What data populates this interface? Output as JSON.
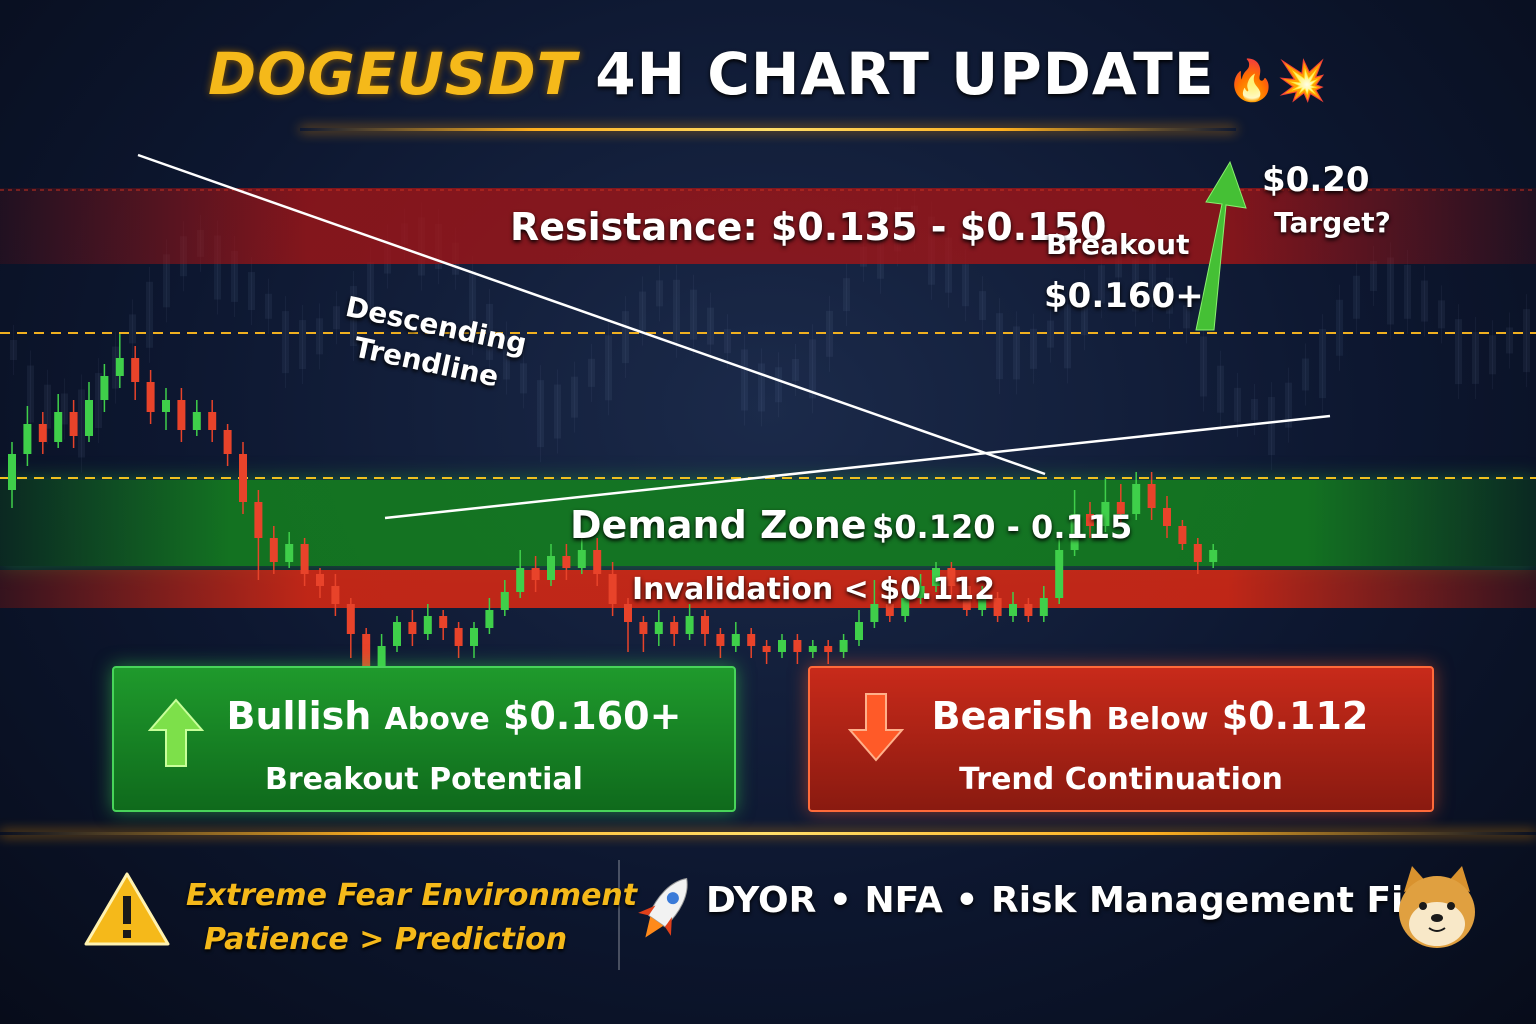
{
  "title": {
    "symbol": "DOGEUSDT",
    "rest": "4H CHART UPDATE",
    "emoji": "🔥💥"
  },
  "annotations": {
    "resistance": "Resistance: $0.135 - $0.150",
    "descending_trendline": "Descending",
    "descending_trendline_2": "Trendline",
    "breakout": "Breakout",
    "breakout_value": "$0.160+",
    "target_value": "$0.20",
    "target_label": "Target?",
    "demand_label": "Demand Zone",
    "demand_value": "$0.120 - 0.115",
    "invalidation": "Invalidation < $0.112"
  },
  "cards": {
    "bullish": {
      "word": "Bullish",
      "mid": "Above",
      "value": "$0.160+",
      "sub": "Breakout Potential"
    },
    "bearish": {
      "word": "Bearish",
      "mid": "Below",
      "value": "$0.112",
      "sub": "Trend Continuation"
    }
  },
  "footer": {
    "warn_line1": "Extreme Fear Environment",
    "warn_line2": "Patience > Prediction",
    "disclaimer": "DYOR • NFA • Risk Management First"
  },
  "icons": [
    "warning-icon",
    "rocket-icon",
    "doge-avatar-icon",
    "up-arrow-icon",
    "down-arrow-icon"
  ],
  "colors": {
    "up": "#3fcf4a",
    "down": "#e8432a",
    "accent": "#f5b91a"
  },
  "chart_data": {
    "type": "candlestick",
    "timeframe": "4H",
    "ylim": [
      0.105,
      0.205
    ],
    "levels": {
      "resistance": [
        0.135,
        0.15
      ],
      "breakout": 0.16,
      "target": 0.2,
      "demand_zone": [
        0.115,
        0.12
      ],
      "invalidation": 0.112
    },
    "candles": [
      {
        "o": 0.14,
        "c": 0.146,
        "h": 0.148,
        "l": 0.137
      },
      {
        "o": 0.146,
        "c": 0.151,
        "h": 0.154,
        "l": 0.144
      },
      {
        "o": 0.151,
        "c": 0.148,
        "h": 0.153,
        "l": 0.146
      },
      {
        "o": 0.148,
        "c": 0.153,
        "h": 0.156,
        "l": 0.147
      },
      {
        "o": 0.153,
        "c": 0.149,
        "h": 0.155,
        "l": 0.147
      },
      {
        "o": 0.149,
        "c": 0.155,
        "h": 0.158,
        "l": 0.148
      },
      {
        "o": 0.155,
        "c": 0.159,
        "h": 0.161,
        "l": 0.153
      },
      {
        "o": 0.159,
        "c": 0.162,
        "h": 0.166,
        "l": 0.157
      },
      {
        "o": 0.162,
        "c": 0.158,
        "h": 0.164,
        "l": 0.155
      },
      {
        "o": 0.158,
        "c": 0.153,
        "h": 0.16,
        "l": 0.151
      },
      {
        "o": 0.153,
        "c": 0.155,
        "h": 0.157,
        "l": 0.15
      },
      {
        "o": 0.155,
        "c": 0.15,
        "h": 0.157,
        "l": 0.148
      },
      {
        "o": 0.15,
        "c": 0.153,
        "h": 0.155,
        "l": 0.149
      },
      {
        "o": 0.153,
        "c": 0.15,
        "h": 0.155,
        "l": 0.148
      },
      {
        "o": 0.15,
        "c": 0.146,
        "h": 0.151,
        "l": 0.144
      },
      {
        "o": 0.146,
        "c": 0.138,
        "h": 0.148,
        "l": 0.136
      },
      {
        "o": 0.138,
        "c": 0.132,
        "h": 0.14,
        "l": 0.125
      },
      {
        "o": 0.132,
        "c": 0.128,
        "h": 0.134,
        "l": 0.126
      },
      {
        "o": 0.128,
        "c": 0.131,
        "h": 0.133,
        "l": 0.127
      },
      {
        "o": 0.131,
        "c": 0.126,
        "h": 0.132,
        "l": 0.124
      },
      {
        "o": 0.126,
        "c": 0.124,
        "h": 0.127,
        "l": 0.122
      },
      {
        "o": 0.124,
        "c": 0.121,
        "h": 0.126,
        "l": 0.119
      },
      {
        "o": 0.121,
        "c": 0.116,
        "h": 0.122,
        "l": 0.112
      },
      {
        "o": 0.116,
        "c": 0.11,
        "h": 0.117,
        "l": 0.098
      },
      {
        "o": 0.11,
        "c": 0.114,
        "h": 0.116,
        "l": 0.108
      },
      {
        "o": 0.114,
        "c": 0.118,
        "h": 0.119,
        "l": 0.113
      },
      {
        "o": 0.118,
        "c": 0.116,
        "h": 0.12,
        "l": 0.114
      },
      {
        "o": 0.116,
        "c": 0.119,
        "h": 0.121,
        "l": 0.115
      },
      {
        "o": 0.119,
        "c": 0.117,
        "h": 0.12,
        "l": 0.115
      },
      {
        "o": 0.117,
        "c": 0.114,
        "h": 0.118,
        "l": 0.112
      },
      {
        "o": 0.114,
        "c": 0.117,
        "h": 0.118,
        "l": 0.112
      },
      {
        "o": 0.117,
        "c": 0.12,
        "h": 0.122,
        "l": 0.116
      },
      {
        "o": 0.12,
        "c": 0.123,
        "h": 0.125,
        "l": 0.119
      },
      {
        "o": 0.123,
        "c": 0.127,
        "h": 0.13,
        "l": 0.122
      },
      {
        "o": 0.127,
        "c": 0.125,
        "h": 0.129,
        "l": 0.123
      },
      {
        "o": 0.125,
        "c": 0.129,
        "h": 0.131,
        "l": 0.124
      },
      {
        "o": 0.129,
        "c": 0.127,
        "h": 0.131,
        "l": 0.125
      },
      {
        "o": 0.127,
        "c": 0.13,
        "h": 0.133,
        "l": 0.126
      },
      {
        "o": 0.13,
        "c": 0.126,
        "h": 0.132,
        "l": 0.124
      },
      {
        "o": 0.126,
        "c": 0.121,
        "h": 0.128,
        "l": 0.119
      },
      {
        "o": 0.121,
        "c": 0.118,
        "h": 0.122,
        "l": 0.113
      },
      {
        "o": 0.118,
        "c": 0.116,
        "h": 0.119,
        "l": 0.113
      },
      {
        "o": 0.116,
        "c": 0.118,
        "h": 0.12,
        "l": 0.114
      },
      {
        "o": 0.118,
        "c": 0.116,
        "h": 0.119,
        "l": 0.114
      },
      {
        "o": 0.116,
        "c": 0.119,
        "h": 0.121,
        "l": 0.115
      },
      {
        "o": 0.119,
        "c": 0.116,
        "h": 0.12,
        "l": 0.114
      },
      {
        "o": 0.116,
        "c": 0.114,
        "h": 0.117,
        "l": 0.112
      },
      {
        "o": 0.114,
        "c": 0.116,
        "h": 0.118,
        "l": 0.113
      },
      {
        "o": 0.116,
        "c": 0.114,
        "h": 0.117,
        "l": 0.112
      },
      {
        "o": 0.114,
        "c": 0.113,
        "h": 0.115,
        "l": 0.111
      },
      {
        "o": 0.113,
        "c": 0.115,
        "h": 0.116,
        "l": 0.112
      },
      {
        "o": 0.115,
        "c": 0.113,
        "h": 0.116,
        "l": 0.111
      },
      {
        "o": 0.113,
        "c": 0.114,
        "h": 0.115,
        "l": 0.112
      },
      {
        "o": 0.114,
        "c": 0.113,
        "h": 0.115,
        "l": 0.111
      },
      {
        "o": 0.113,
        "c": 0.115,
        "h": 0.116,
        "l": 0.112
      },
      {
        "o": 0.115,
        "c": 0.118,
        "h": 0.12,
        "l": 0.114
      },
      {
        "o": 0.118,
        "c": 0.121,
        "h": 0.125,
        "l": 0.117
      },
      {
        "o": 0.121,
        "c": 0.119,
        "h": 0.122,
        "l": 0.118
      },
      {
        "o": 0.119,
        "c": 0.122,
        "h": 0.124,
        "l": 0.118
      },
      {
        "o": 0.122,
        "c": 0.124,
        "h": 0.126,
        "l": 0.121
      },
      {
        "o": 0.124,
        "c": 0.127,
        "h": 0.128,
        "l": 0.123
      },
      {
        "o": 0.127,
        "c": 0.124,
        "h": 0.128,
        "l": 0.122
      },
      {
        "o": 0.124,
        "c": 0.12,
        "h": 0.125,
        "l": 0.119
      },
      {
        "o": 0.12,
        "c": 0.122,
        "h": 0.124,
        "l": 0.119
      },
      {
        "o": 0.122,
        "c": 0.119,
        "h": 0.123,
        "l": 0.118
      },
      {
        "o": 0.119,
        "c": 0.121,
        "h": 0.123,
        "l": 0.118
      },
      {
        "o": 0.121,
        "c": 0.119,
        "h": 0.122,
        "l": 0.118
      },
      {
        "o": 0.119,
        "c": 0.122,
        "h": 0.124,
        "l": 0.118
      },
      {
        "o": 0.122,
        "c": 0.13,
        "h": 0.132,
        "l": 0.121
      },
      {
        "o": 0.13,
        "c": 0.136,
        "h": 0.14,
        "l": 0.129
      },
      {
        "o": 0.136,
        "c": 0.134,
        "h": 0.138,
        "l": 0.132
      },
      {
        "o": 0.134,
        "c": 0.138,
        "h": 0.142,
        "l": 0.133
      },
      {
        "o": 0.138,
        "c": 0.136,
        "h": 0.141,
        "l": 0.134
      },
      {
        "o": 0.136,
        "c": 0.141,
        "h": 0.143,
        "l": 0.135
      },
      {
        "o": 0.141,
        "c": 0.137,
        "h": 0.143,
        "l": 0.135
      },
      {
        "o": 0.137,
        "c": 0.134,
        "h": 0.139,
        "l": 0.132
      },
      {
        "o": 0.134,
        "c": 0.131,
        "h": 0.135,
        "l": 0.13
      },
      {
        "o": 0.131,
        "c": 0.128,
        "h": 0.132,
        "l": 0.126
      },
      {
        "o": 0.128,
        "c": 0.13,
        "h": 0.131,
        "l": 0.127
      }
    ]
  }
}
